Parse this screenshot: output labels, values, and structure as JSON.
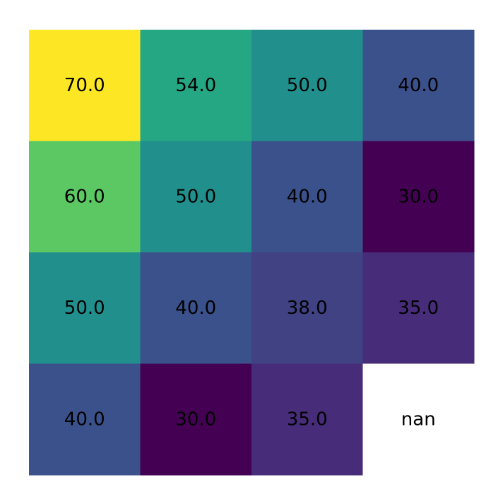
{
  "chart_data": {
    "type": "heatmap",
    "title": "",
    "xlabel": "",
    "ylabel": "",
    "rows": 4,
    "cols": 4,
    "values": [
      [
        70.0,
        54.0,
        50.0,
        40.0
      ],
      [
        60.0,
        50.0,
        40.0,
        30.0
      ],
      [
        50.0,
        40.0,
        38.0,
        35.0
      ],
      [
        40.0,
        30.0,
        35.0,
        null
      ]
    ],
    "labels": [
      [
        "70.0",
        "54.0",
        "50.0",
        "40.0"
      ],
      [
        "60.0",
        "50.0",
        "40.0",
        "30.0"
      ],
      [
        "50.0",
        "40.0",
        "38.0",
        "35.0"
      ],
      [
        "40.0",
        "30.0",
        "35.0",
        "nan"
      ]
    ],
    "colormap": "viridis",
    "vmin": 30,
    "vmax": 70,
    "missing_color": "#ffffff",
    "grid": false,
    "axes_visible": false
  }
}
